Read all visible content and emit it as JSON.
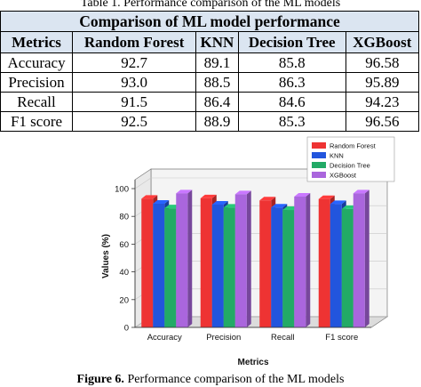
{
  "table": {
    "caption": "Table 1. Performance comparison of the ML models",
    "title": "Comparison of ML model performance",
    "headers": [
      "Metrics",
      "Random Forest",
      "KNN",
      "Decision Tree",
      "XGBoost"
    ],
    "rows": [
      {
        "metric": "Accuracy",
        "values": [
          "92.7",
          "89.1",
          "85.8",
          "96.58"
        ]
      },
      {
        "metric": "Precision",
        "values": [
          "93.0",
          "88.5",
          "86.3",
          "95.89"
        ]
      },
      {
        "metric": "Recall",
        "values": [
          "91.5",
          "86.4",
          "84.6",
          "94.23"
        ]
      },
      {
        "metric": "F1 score",
        "values": [
          "92.5",
          "88.9",
          "85.3",
          "96.56"
        ]
      }
    ]
  },
  "figure": {
    "label": "Figure 6.",
    "caption": "Performance comparison of the ML models"
  },
  "chart_data": {
    "type": "bar",
    "categories": [
      "Accuracy",
      "Precision",
      "Recall",
      "F1 score"
    ],
    "series": [
      {
        "name": "Random Forest",
        "color": "#ee3333",
        "values": [
          92.7,
          93.0,
          91.5,
          92.5
        ]
      },
      {
        "name": "KNN",
        "color": "#2255dd",
        "values": [
          89.1,
          88.5,
          86.4,
          88.9
        ]
      },
      {
        "name": "Decision Tree",
        "color": "#22aa66",
        "values": [
          85.8,
          86.3,
          84.6,
          85.3
        ]
      },
      {
        "name": "XGBoost",
        "color": "#aa66dd",
        "values": [
          96.58,
          95.89,
          94.23,
          96.56
        ]
      }
    ],
    "xlabel": "Metrics",
    "ylabel": "Values (%)",
    "ylim": [
      0,
      100
    ],
    "yticks": [
      "0",
      "20",
      "40",
      "60",
      "80",
      "100"
    ],
    "legend_position": "top-right",
    "style": "3d-box"
  }
}
